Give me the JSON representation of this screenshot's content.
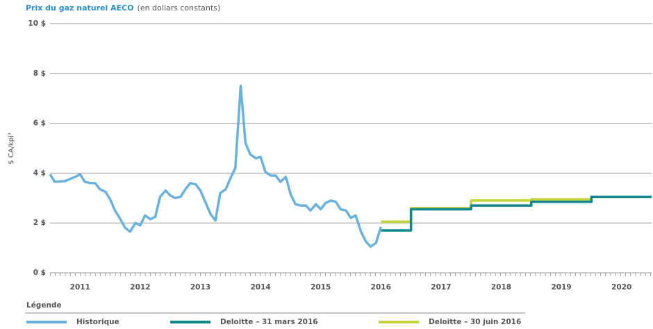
{
  "chart_data": {
    "type": "line",
    "title": "Prix du gaz naturel AECO",
    "subtitle": "(en dollars constants)",
    "y_label": "$ CA/kpi³",
    "legend_title": "Légende",
    "legend": "bottom",
    "grid": true,
    "xlim": [
      2011,
      2021
    ],
    "ylim": [
      0,
      10
    ],
    "yticks": [
      {
        "value": 0,
        "label": "0 $"
      },
      {
        "value": 2,
        "label": "2 $"
      },
      {
        "value": 4,
        "label": "4 $"
      },
      {
        "value": 6,
        "label": "6 $"
      },
      {
        "value": 8,
        "label": "8 $"
      },
      {
        "value": 10,
        "label": "10 $"
      }
    ],
    "xticks": [
      {
        "value": 2011.5,
        "label": "2011"
      },
      {
        "value": 2012.5,
        "label": "2012"
      },
      {
        "value": 2013.5,
        "label": "2013"
      },
      {
        "value": 2014.5,
        "label": "2014"
      },
      {
        "value": 2015.5,
        "label": "2015"
      },
      {
        "value": 2016.5,
        "label": "2016"
      },
      {
        "value": 2017.5,
        "label": "2017"
      },
      {
        "value": 2018.5,
        "label": "2018"
      },
      {
        "value": 2019.5,
        "label": "2019"
      },
      {
        "value": 2020.5,
        "label": "2020"
      }
    ],
    "series": [
      {
        "name": "Historique",
        "color": "#6ab2dd",
        "x": [
          2011.0,
          2011.08,
          2011.25,
          2011.42,
          2011.5,
          2011.58,
          2011.67,
          2011.75,
          2011.83,
          2011.92,
          2012.0,
          2012.08,
          2012.17,
          2012.25,
          2012.33,
          2012.42,
          2012.5,
          2012.58,
          2012.67,
          2012.75,
          2012.83,
          2012.92,
          2013.0,
          2013.08,
          2013.17,
          2013.25,
          2013.33,
          2013.42,
          2013.5,
          2013.58,
          2013.67,
          2013.75,
          2013.83,
          2013.92,
          2014.0,
          2014.08,
          2014.17,
          2014.25,
          2014.33,
          2014.42,
          2014.5,
          2014.58,
          2014.67,
          2014.75,
          2014.83,
          2014.92,
          2015.0,
          2015.08,
          2015.17,
          2015.25,
          2015.33,
          2015.42,
          2015.5,
          2015.58,
          2015.67,
          2015.75,
          2015.83,
          2015.92,
          2016.0,
          2016.08,
          2016.17,
          2016.25,
          2016.33,
          2016.42,
          2016.5
        ],
        "values": [
          3.95,
          3.65,
          3.68,
          3.85,
          3.95,
          3.65,
          3.6,
          3.6,
          3.35,
          3.25,
          2.95,
          2.5,
          2.15,
          1.8,
          1.65,
          2.0,
          1.9,
          2.3,
          2.15,
          2.25,
          3.05,
          3.3,
          3.1,
          3.0,
          3.05,
          3.35,
          3.6,
          3.55,
          3.3,
          2.85,
          2.35,
          2.1,
          3.2,
          3.35,
          3.8,
          4.2,
          7.5,
          5.2,
          4.75,
          4.6,
          4.65,
          4.05,
          3.9,
          3.9,
          3.65,
          3.85,
          3.15,
          2.75,
          2.7,
          2.7,
          2.5,
          2.75,
          2.55,
          2.8,
          2.9,
          2.85,
          2.55,
          2.5,
          2.2,
          2.3,
          1.65,
          1.25,
          1.05,
          1.2,
          1.85
        ]
      },
      {
        "name": "Deloitte – 31 mars 2016",
        "color": "#13878e",
        "x": [
          2016.5,
          2017.0,
          2017.0,
          2018.0,
          2018.0,
          2019.0,
          2019.0,
          2020.0,
          2020.0,
          2021.0
        ],
        "values": [
          1.7,
          1.7,
          2.55,
          2.55,
          2.7,
          2.7,
          2.85,
          2.85,
          3.05,
          3.05
        ]
      },
      {
        "name": "Deloitte – 30 juin 2016",
        "color": "#c3d43c",
        "x": [
          2016.5,
          2017.0,
          2017.0,
          2018.0,
          2018.0,
          2019.0,
          2019.0,
          2020.0
        ],
        "values": [
          2.05,
          2.05,
          2.6,
          2.6,
          2.9,
          2.9,
          2.95,
          2.95
        ]
      }
    ]
  }
}
